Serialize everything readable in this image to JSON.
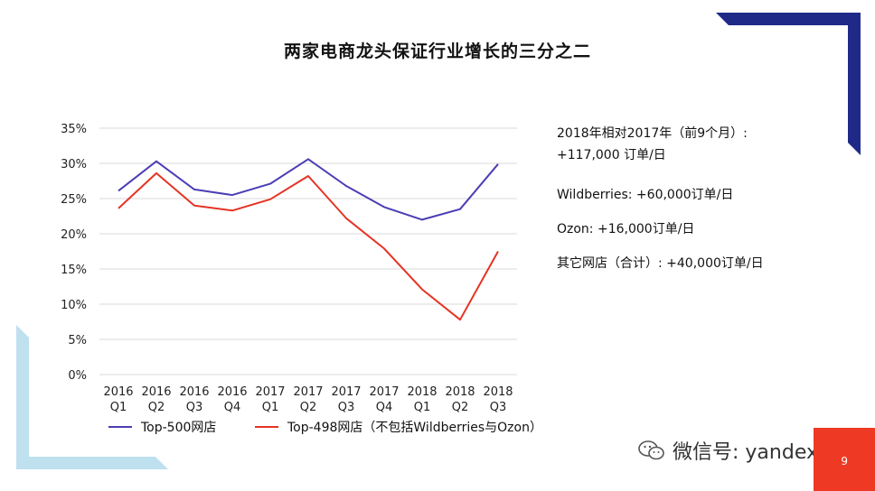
{
  "title": "两家电商龙头保证行业增长的三分之二",
  "colors": {
    "series1": "#4b3eb5",
    "series2": "#e53323",
    "deco_navy": "#1f2a88",
    "deco_lightblue": "#bfe0ee",
    "page_box": "#ee3a24"
  },
  "chart_data": {
    "type": "line",
    "categories": [
      "2016 Q1",
      "2016 Q2",
      "2016 Q3",
      "2016 Q4",
      "2017 Q1",
      "2017 Q2",
      "2017 Q3",
      "2017 Q4",
      "2018 Q1",
      "2018 Q2",
      "2018 Q3"
    ],
    "category_labels": [
      {
        "year": "2016",
        "q": "Q1"
      },
      {
        "year": "2016",
        "q": "Q2"
      },
      {
        "year": "2016",
        "q": "Q3"
      },
      {
        "year": "2016",
        "q": "Q4"
      },
      {
        "year": "2017",
        "q": "Q1"
      },
      {
        "year": "2017",
        "q": "Q2"
      },
      {
        "year": "2017",
        "q": "Q3"
      },
      {
        "year": "2017",
        "q": "Q4"
      },
      {
        "year": "2018",
        "q": "Q1"
      },
      {
        "year": "2018",
        "q": "Q2"
      },
      {
        "year": "2018",
        "q": "Q3"
      }
    ],
    "yticks": [
      "0%",
      "5%",
      "10%",
      "15%",
      "20%",
      "25%",
      "30%",
      "35%"
    ],
    "ylim": [
      0,
      35
    ],
    "grid": true,
    "legend_position": "bottom",
    "series": [
      {
        "name": "Top-500网店",
        "values": [
          26.1,
          30.3,
          26.3,
          25.5,
          27.1,
          30.6,
          26.8,
          23.8,
          22.0,
          23.5,
          29.9
        ]
      },
      {
        "name": "Top-498网店（不包括Wildberries与Ozon）",
        "values": [
          23.6,
          28.6,
          24.0,
          23.3,
          24.9,
          28.2,
          22.2,
          17.9,
          12.1,
          7.8,
          17.5
        ]
      }
    ]
  },
  "notes": {
    "line1": "2018年相对2017年（前9个月）:",
    "line2": "+117,000 订单/日",
    "wildberries": "Wildberries: +60,000订单/日",
    "ozon": "Ozon: +16,000订单/日",
    "others": "其它网店（合计）: +40,000订单/日"
  },
  "watermark": {
    "text": "微信号: yandexcn",
    "icon": "wechat-icon"
  },
  "page_number": "9"
}
